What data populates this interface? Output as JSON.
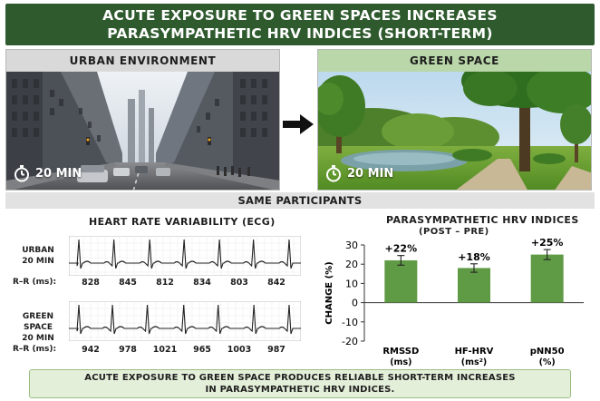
{
  "header": {
    "title_line1": "ACUTE EXPOSURE TO GREEN SPACES INCREASES",
    "title_line2": "PARASYMPATHETIC HRV INDICES (SHORT-TERM)"
  },
  "conditions": {
    "urban": {
      "label": "URBAN ENVIRONMENT",
      "duration": "20 MIN"
    },
    "green": {
      "label": "GREEN SPACE",
      "duration": "20 MIN"
    }
  },
  "participants_band": "SAME PARTICIPANTS",
  "ecg": {
    "title": "HEART RATE VARIABILITY (ECG)",
    "rr_label": "R–R (ms):",
    "rows": [
      {
        "label_line1": "URBAN",
        "label_line2": "20 MIN",
        "rr": [
          "828",
          "845",
          "812",
          "834",
          "803",
          "842"
        ]
      },
      {
        "label_line1": "GREEN SPACE",
        "label_line2": "20 MIN",
        "rr": [
          "942",
          "978",
          "1021",
          "965",
          "1003",
          "987"
        ]
      }
    ]
  },
  "chart_data": {
    "type": "bar",
    "title": "PARASYMPATHETIC HRV INDICES",
    "subtitle": "(POST – PRE)",
    "ylabel": "CHANGE (%)",
    "categories": [
      [
        "RMSSD",
        "(ms)"
      ],
      [
        "HF-HRV",
        "(ms²)"
      ],
      [
        "pNN50",
        "(%)"
      ]
    ],
    "values": [
      22,
      18,
      25
    ],
    "errors": [
      2.5,
      2.2,
      2.6
    ],
    "value_labels": [
      "+22%",
      "+18%",
      "+25%"
    ],
    "yticks": [
      30,
      20,
      10,
      0,
      -10,
      -20
    ],
    "ylim": [
      -20,
      30
    ],
    "bar_color": "#5f9a45",
    "grid": false
  },
  "conclusion": {
    "line1": "ACUTE EXPOSURE TO GREEN SPACE PRODUCES RELIABLE SHORT-TERM INCREASES",
    "line2": "IN PARASYMPATHETIC HRV INDICES."
  },
  "icons": {
    "timer": "stopwatch-icon",
    "arrow": "arrow-right-icon"
  }
}
